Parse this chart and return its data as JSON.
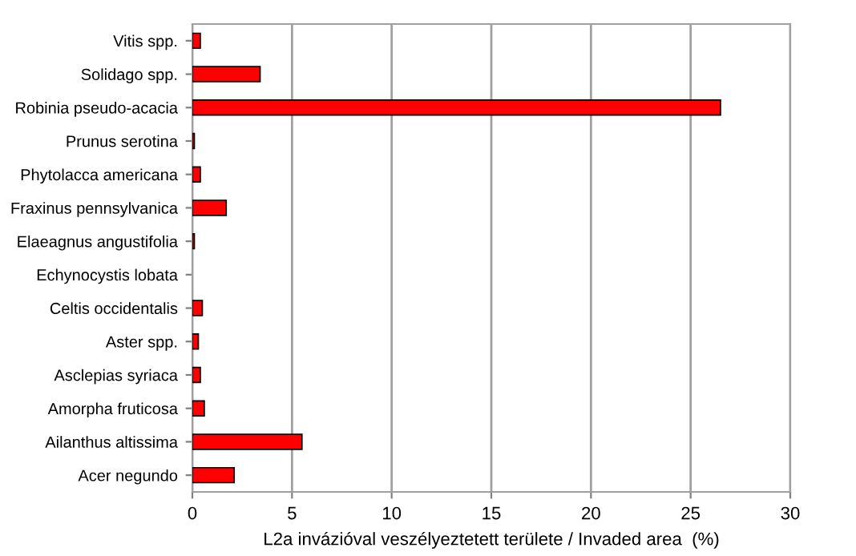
{
  "chart_data": {
    "type": "bar",
    "orientation": "horizontal",
    "xlabel": "L2a invázióval veszélyeztetett területe / Invaded area  (%)",
    "categories": [
      "Vitis spp.",
      "Solidago spp.",
      "Robinia pseudo-acacia",
      "Prunus serotina",
      "Phytolacca americana",
      "Fraxinus pennsylvanica",
      "Elaeagnus angustifolia",
      "Echynocystis lobata",
      "Celtis occidentalis",
      "Aster spp.",
      "Asclepias syriaca",
      "Amorpha fruticosa",
      "Ailanthus altissima",
      "Acer negundo"
    ],
    "values": [
      0.4,
      3.4,
      26.5,
      0.1,
      0.4,
      1.7,
      0.1,
      0,
      0.5,
      0.3,
      0.4,
      0.6,
      5.5,
      2.1
    ],
    "color": "#ff0000",
    "xlim": [
      0,
      30
    ],
    "xticks": [
      0,
      5,
      10,
      15,
      20,
      25,
      30
    ],
    "grid": "x",
    "legend": false
  }
}
